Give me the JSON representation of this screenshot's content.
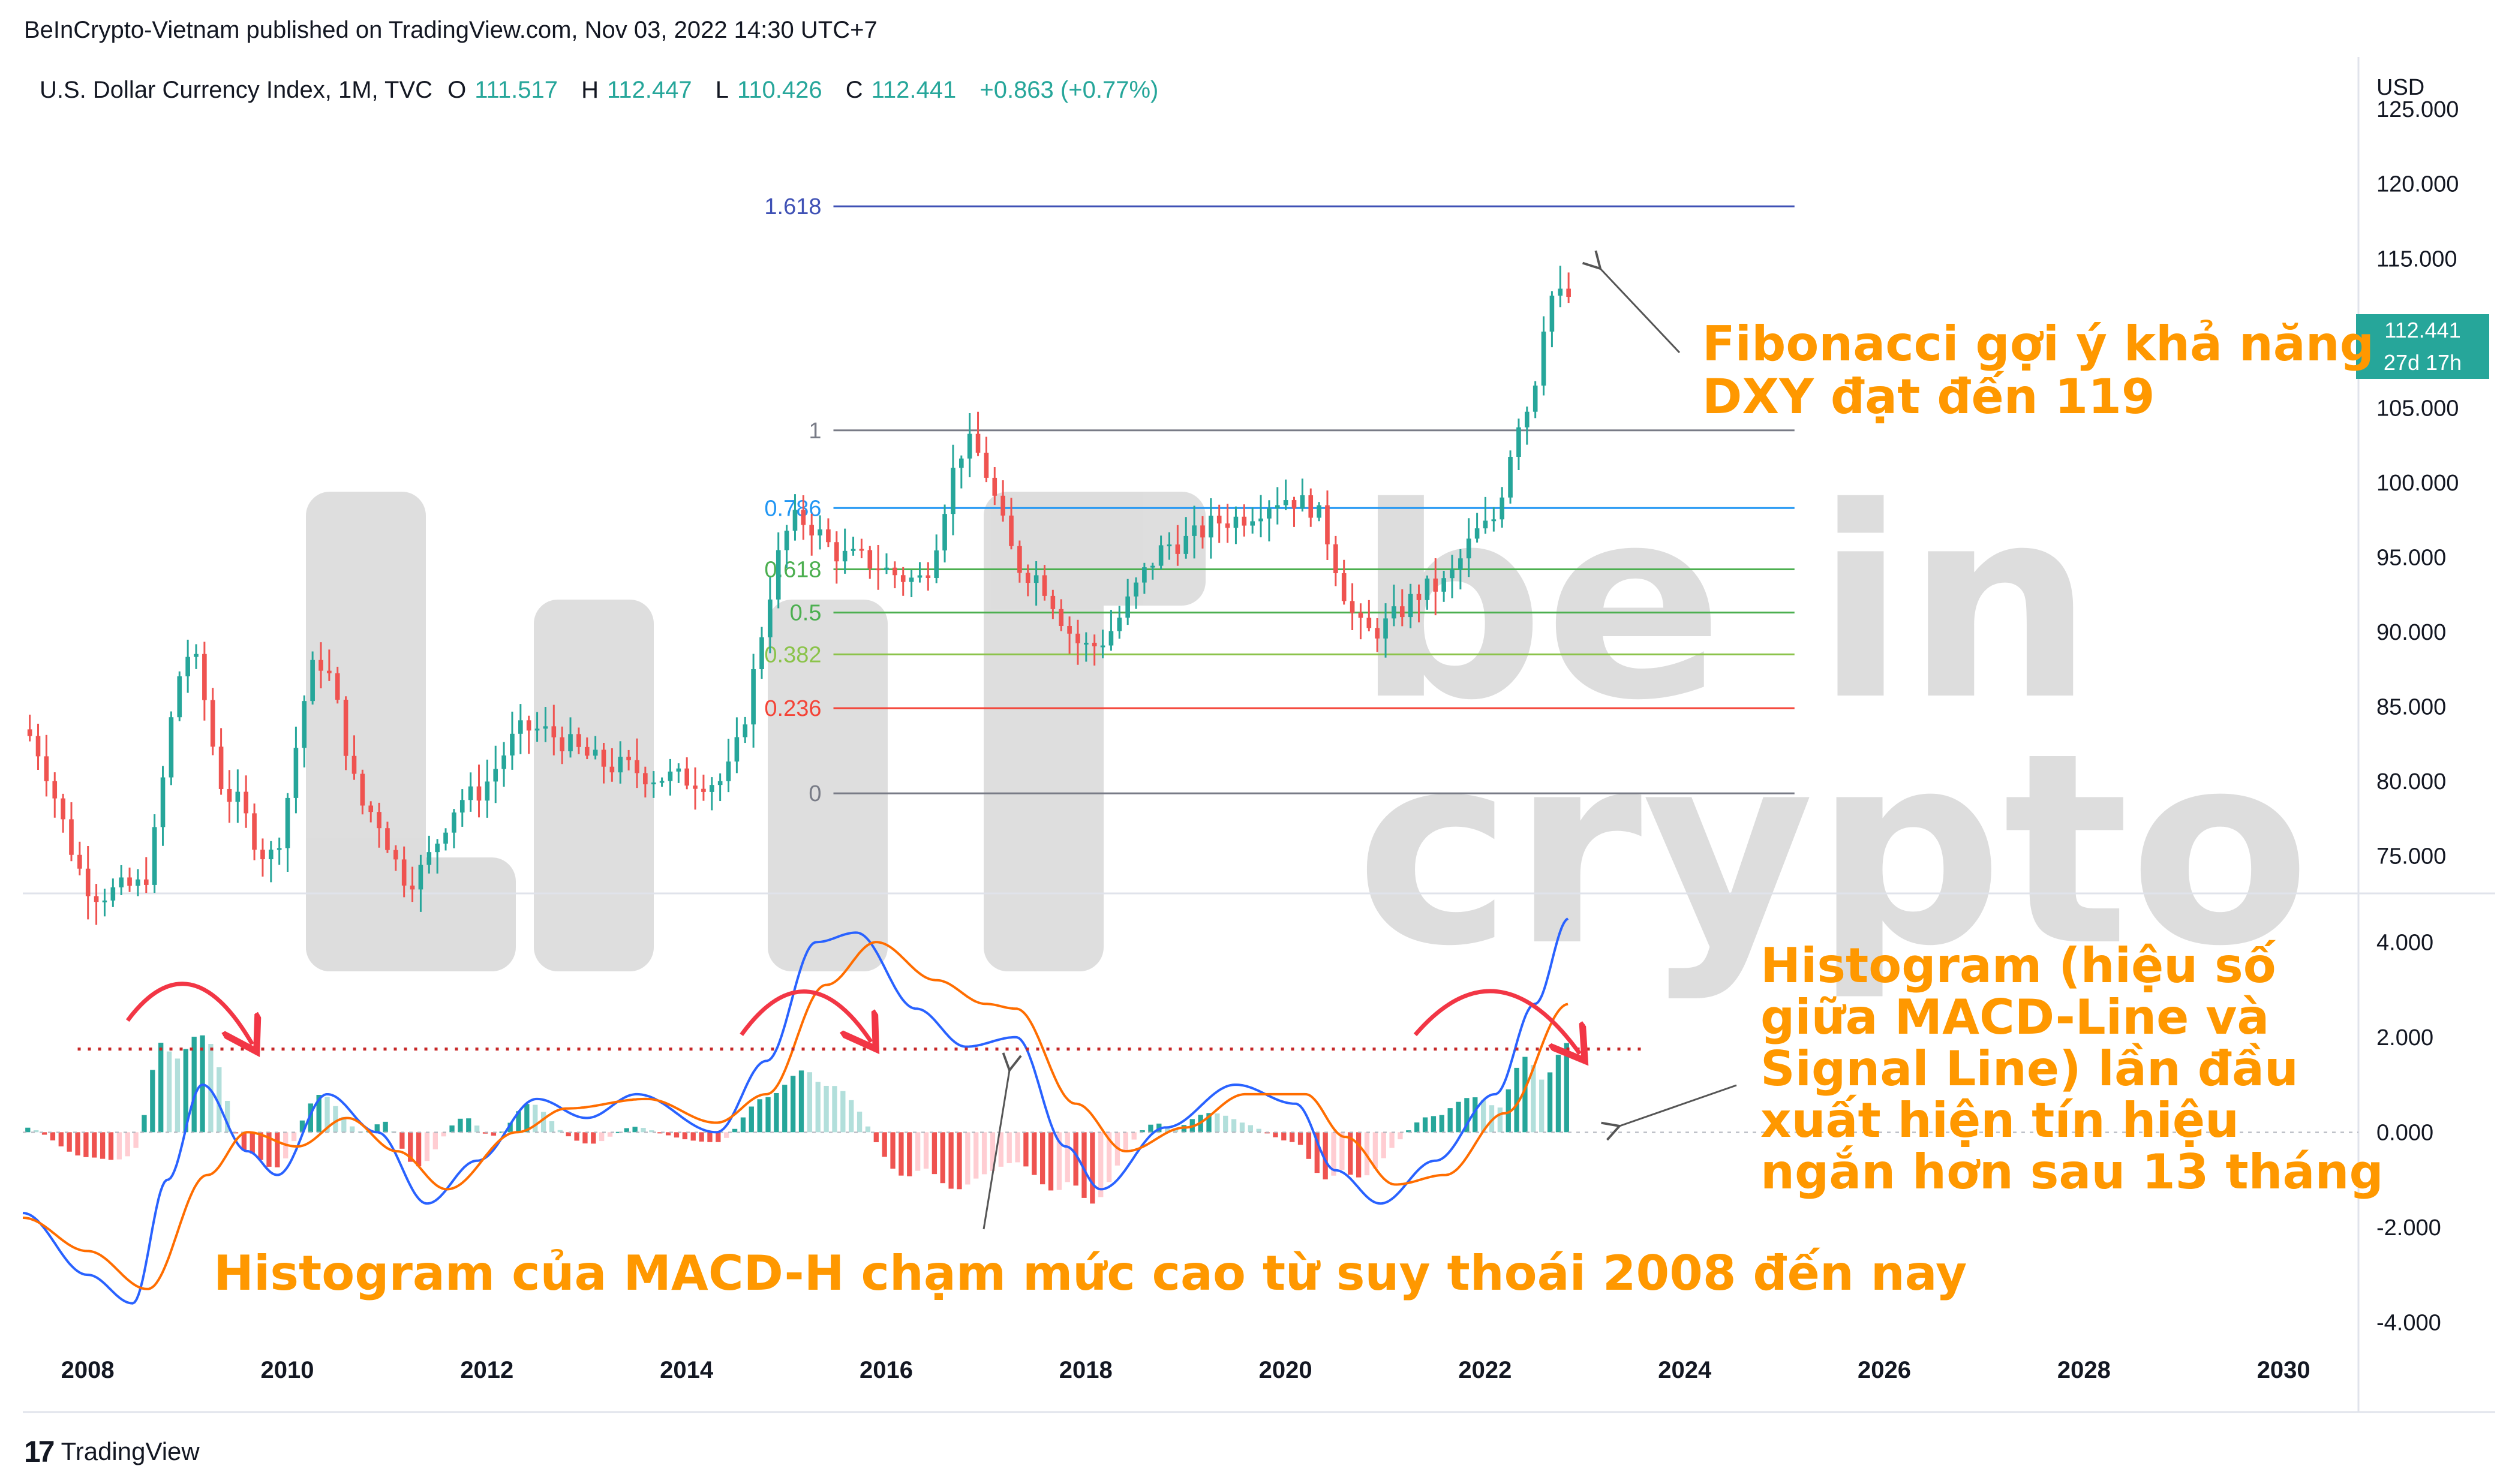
{
  "header": {
    "published": "BeInCrypto-Vietnam published on TradingView.com, Nov 03, 2022 14:30 UTC+7"
  },
  "legend": {
    "symbol": "U.S. Dollar Currency Index, 1M, TVC",
    "open_label": "O",
    "open": "111.517",
    "high_label": "H",
    "high": "112.447",
    "low_label": "L",
    "low": "110.426",
    "close_label": "C",
    "close": "112.441",
    "change": "+0.863 (+0.77%)"
  },
  "price_tag": {
    "price": "112.441",
    "countdown": "27d 17h"
  },
  "annotations": {
    "fib": [
      "Fibonacci gợi ý khả năng",
      "DXY đạt đến 119"
    ],
    "histogram": [
      "Histogram (hiệu số",
      "giữa MACD-Line và",
      "Signal Line) lần đầu",
      "xuất hiện tín hiệu",
      "ngắn hơn sau 13 tháng"
    ],
    "macd_h": "Histogram của MACD-H chạm mức cao từ suy thoái 2008 đến nay"
  },
  "footer": {
    "logo_icon": "17",
    "brand": "TradingView"
  },
  "watermark": {
    "line1": "be in",
    "line2": "crypto"
  },
  "colors": {
    "up": "#26a69a",
    "down": "#ef5350",
    "hist_up_light": "#b2dfdb",
    "hist_down_light": "#ffcdd2",
    "macd": "#2962ff",
    "signal": "#ff6d00",
    "annotation": "#ff9800",
    "arrow": "#f23645",
    "fib_1618": "#3f51b5",
    "fib_1": "#787b86",
    "fib_0786": "#2196f3",
    "fib_0618": "#4caf50",
    "fib_05": "#4caf50",
    "fib_0382": "#8bc34a",
    "fib_0236": "#f44336",
    "fib_0": "#787b86"
  },
  "chart_data": [
    {
      "type": "candlestick",
      "title": "U.S. Dollar Currency Index, 1M, TVC",
      "y_axis_label": "USD",
      "y_ticks": [
        "75.000",
        "80.000",
        "85.000",
        "90.000",
        "95.000",
        "100.000",
        "105.000",
        "110.000",
        "115.000",
        "120.000",
        "125.000"
      ],
      "x_ticks": [
        "2008",
        "2010",
        "2012",
        "2014",
        "2016",
        "2018",
        "2020",
        "2022",
        "2024",
        "2026",
        "2028",
        "2030"
      ],
      "xlim": [
        2007.35,
        2030.75
      ],
      "ylim": [
        72.5,
        128.5
      ],
      "key_points": [
        {
          "t": 2007.4,
          "v": 83.5
        },
        {
          "t": 2008.2,
          "v": 72.5
        },
        {
          "t": 2008.6,
          "v": 73
        },
        {
          "t": 2009.1,
          "v": 88.5
        },
        {
          "t": 2009.5,
          "v": 79
        },
        {
          "t": 2009.9,
          "v": 75
        },
        {
          "t": 2010.4,
          "v": 88
        },
        {
          "t": 2010.9,
          "v": 78
        },
        {
          "t": 2011.3,
          "v": 73.5
        },
        {
          "t": 2011.9,
          "v": 79
        },
        {
          "t": 2012.5,
          "v": 83.5
        },
        {
          "t": 2013.4,
          "v": 81
        },
        {
          "t": 2013.8,
          "v": 80.3
        },
        {
          "t": 2014.4,
          "v": 80
        },
        {
          "t": 2015.2,
          "v": 97.5
        },
        {
          "t": 2015.7,
          "v": 95
        },
        {
          "t": 2016.4,
          "v": 93.5
        },
        {
          "t": 2016.9,
          "v": 102.5
        },
        {
          "t": 2017.5,
          "v": 94
        },
        {
          "t": 2018.1,
          "v": 89
        },
        {
          "t": 2019.0,
          "v": 96
        },
        {
          "t": 2019.5,
          "v": 97.5
        },
        {
          "t": 2020.1,
          "v": 99
        },
        {
          "t": 2020.3,
          "v": 98.5
        },
        {
          "t": 2020.9,
          "v": 90
        },
        {
          "t": 2021.6,
          "v": 93
        },
        {
          "t": 2022.1,
          "v": 97
        },
        {
          "t": 2022.5,
          "v": 105
        },
        {
          "t": 2022.75,
          "v": 112.5
        },
        {
          "t": 2022.84,
          "v": 112.441
        }
      ],
      "fibonacci": [
        {
          "level": "1.618",
          "value": 118.5
        },
        {
          "level": "1",
          "value": 103.5
        },
        {
          "level": "0.786",
          "value": 98.3
        },
        {
          "level": "0.618",
          "value": 94.2
        },
        {
          "level": "0.5",
          "value": 91.3
        },
        {
          "level": "0.382",
          "value": 88.5
        },
        {
          "level": "0.236",
          "value": 84.9
        },
        {
          "level": "0",
          "value": 79.2
        }
      ],
      "fib_range_x": [
        2014.45,
        2025.1
      ],
      "last_price": 112.441
    },
    {
      "type": "line+histogram",
      "title": "MACD",
      "y_ticks": [
        "-4.000",
        "-2.000",
        "0.000",
        "2.000",
        "4.000"
      ],
      "ylim": [
        -4.5,
        5.0
      ],
      "macd_key": [
        {
          "t": 2007.35,
          "v": -1.7
        },
        {
          "t": 2008.0,
          "v": -3.0
        },
        {
          "t": 2008.45,
          "v": -3.6
        },
        {
          "t": 2008.8,
          "v": -1.0
        },
        {
          "t": 2009.15,
          "v": 1.0
        },
        {
          "t": 2009.6,
          "v": -0.4
        },
        {
          "t": 2009.9,
          "v": -0.9
        },
        {
          "t": 2010.4,
          "v": 0.8
        },
        {
          "t": 2010.9,
          "v": 0.0
        },
        {
          "t": 2011.4,
          "v": -1.5
        },
        {
          "t": 2011.9,
          "v": -0.6
        },
        {
          "t": 2012.5,
          "v": 0.7
        },
        {
          "t": 2013.0,
          "v": 0.3
        },
        {
          "t": 2013.5,
          "v": 0.8
        },
        {
          "t": 2014.3,
          "v": 0.0
        },
        {
          "t": 2014.8,
          "v": 1.5
        },
        {
          "t": 2015.3,
          "v": 4.0
        },
        {
          "t": 2015.7,
          "v": 4.2
        },
        {
          "t": 2016.3,
          "v": 2.6
        },
        {
          "t": 2016.8,
          "v": 1.8
        },
        {
          "t": 2017.3,
          "v": 2.0
        },
        {
          "t": 2017.8,
          "v": -0.3
        },
        {
          "t": 2018.15,
          "v": -1.2
        },
        {
          "t": 2018.8,
          "v": 0.1
        },
        {
          "t": 2019.5,
          "v": 1.0
        },
        {
          "t": 2020.1,
          "v": 0.6
        },
        {
          "t": 2020.5,
          "v": -0.8
        },
        {
          "t": 2020.95,
          "v": -1.5
        },
        {
          "t": 2021.5,
          "v": -0.6
        },
        {
          "t": 2022.1,
          "v": 0.8
        },
        {
          "t": 2022.5,
          "v": 2.7
        },
        {
          "t": 2022.84,
          "v": 4.5
        }
      ],
      "signal_key": [
        {
          "t": 2007.35,
          "v": -1.8
        },
        {
          "t": 2008.0,
          "v": -2.5
        },
        {
          "t": 2008.6,
          "v": -3.3
        },
        {
          "t": 2009.2,
          "v": -0.9
        },
        {
          "t": 2009.6,
          "v": 0.0
        },
        {
          "t": 2010.1,
          "v": -0.3
        },
        {
          "t": 2010.6,
          "v": 0.3
        },
        {
          "t": 2011.1,
          "v": -0.4
        },
        {
          "t": 2011.6,
          "v": -1.2
        },
        {
          "t": 2012.3,
          "v": 0.0
        },
        {
          "t": 2012.8,
          "v": 0.5
        },
        {
          "t": 2013.6,
          "v": 0.7
        },
        {
          "t": 2014.3,
          "v": 0.2
        },
        {
          "t": 2014.8,
          "v": 0.8
        },
        {
          "t": 2015.4,
          "v": 3.1
        },
        {
          "t": 2015.9,
          "v": 4.0
        },
        {
          "t": 2016.5,
          "v": 3.2
        },
        {
          "t": 2017.0,
          "v": 2.7
        },
        {
          "t": 2017.3,
          "v": 2.6
        },
        {
          "t": 2017.9,
          "v": 0.6
        },
        {
          "t": 2018.4,
          "v": -0.4
        },
        {
          "t": 2019.0,
          "v": 0.1
        },
        {
          "t": 2019.6,
          "v": 0.8
        },
        {
          "t": 2020.2,
          "v": 0.8
        },
        {
          "t": 2020.6,
          "v": -0.1
        },
        {
          "t": 2021.1,
          "v": -1.1
        },
        {
          "t": 2021.6,
          "v": -0.9
        },
        {
          "t": 2022.2,
          "v": 0.4
        },
        {
          "t": 2022.84,
          "v": 2.7
        }
      ],
      "reference_level": 1.75
    }
  ]
}
